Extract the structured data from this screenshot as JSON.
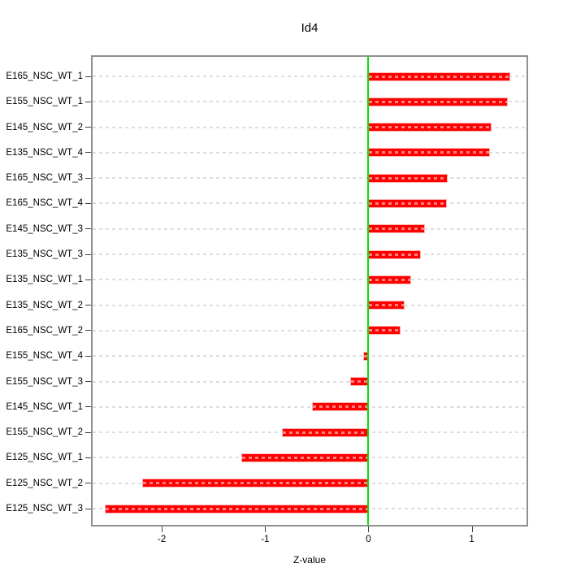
{
  "title": "Id4",
  "colors": {
    "bar_fill": "#ff0000",
    "bar_edge": "#ffb3b3",
    "zero_line": "#00e400",
    "grid_dash": "#dedede",
    "plot_border": "#8f8f8f",
    "tick": "#404040",
    "text": "#000000",
    "background": "#ffffff"
  },
  "chart_data": {
    "type": "bar",
    "orientation": "horizontal",
    "title": "Id4",
    "xlabel": "Z-value",
    "ylabel": "",
    "xlim": [
      -2.67,
      1.53
    ],
    "xticks": [
      -2,
      -1,
      0,
      1
    ],
    "grid": "horizontal dashed lines per category",
    "zero_reference_line": true,
    "legend": "none",
    "categories": [
      "E165_NSC_WT_1",
      "E155_NSC_WT_1",
      "E145_NSC_WT_2",
      "E135_NSC_WT_4",
      "E165_NSC_WT_3",
      "E165_NSC_WT_4",
      "E145_NSC_WT_3",
      "E135_NSC_WT_3",
      "E135_NSC_WT_1",
      "E135_NSC_WT_2",
      "E165_NSC_WT_2",
      "E155_NSC_WT_4",
      "E155_NSC_WT_3",
      "E145_NSC_WT_1",
      "E155_NSC_WT_2",
      "E125_NSC_WT_1",
      "E125_NSC_WT_2",
      "E125_NSC_WT_3"
    ],
    "values": [
      1.37,
      1.35,
      1.19,
      1.18,
      0.77,
      0.76,
      0.55,
      0.51,
      0.41,
      0.35,
      0.31,
      -0.05,
      -0.18,
      -0.55,
      -0.84,
      -1.23,
      -2.19,
      -2.55
    ]
  }
}
